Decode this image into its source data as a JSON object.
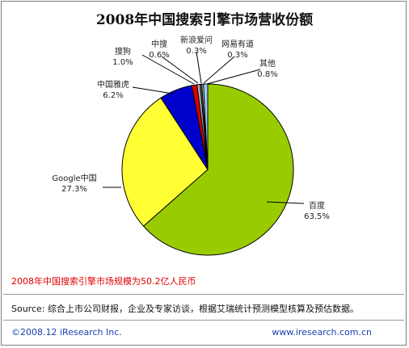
{
  "title": "2008年中国搜索引擎市场营收份额",
  "note": "2008年中国搜索引擎市场规模为50.2亿人民币",
  "source": "Source: 综合上市公司财报，企业及专家访谈，根据艾瑞统计预测模型核算及预估数据。",
  "copyright": "©2008.12 iResearch Inc.",
  "site": "www.iresearch.com.cn",
  "chart_data": {
    "type": "pie",
    "title": "2008年中国搜索引擎市场营收份额",
    "legend": "none",
    "slices": [
      {
        "name": "百度",
        "value": 63.5,
        "label": "63.5%",
        "color": "#99cc00"
      },
      {
        "name": "Google中国",
        "value": 27.3,
        "label": "27.3%",
        "color": "#ffff33"
      },
      {
        "name": "中国雅虎",
        "value": 6.2,
        "label": "6.2%",
        "color": "#0000cc"
      },
      {
        "name": "搜狗",
        "value": 1.0,
        "label": "1.0%",
        "color": "#dd0000"
      },
      {
        "name": "中搜",
        "value": 0.6,
        "label": "0.6%",
        "color": "#aaaaaa"
      },
      {
        "name": "新浪爱问",
        "value": 0.3,
        "label": "0.3%",
        "color": "#666666"
      },
      {
        "name": "网易有道",
        "value": 0.3,
        "label": "0.3%",
        "color": "#ffffcc"
      },
      {
        "name": "其他",
        "value": 0.8,
        "label": "0.8%",
        "color": "#99ccff"
      }
    ]
  }
}
